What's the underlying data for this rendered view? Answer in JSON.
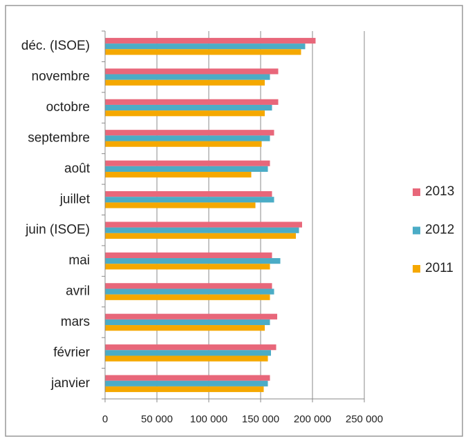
{
  "chart_data": {
    "type": "bar",
    "orientation": "horizontal",
    "categories": [
      "janvier",
      "février",
      "mars",
      "avril",
      "mai",
      "juin (ISOE)",
      "juillet",
      "août",
      "septembre",
      "octobre",
      "novembre",
      "déc. (ISOE)"
    ],
    "series": [
      {
        "name": "2013",
        "color": "#e8677a",
        "values": [
          159000,
          165000,
          166000,
          161000,
          161000,
          190000,
          161000,
          159000,
          163000,
          167000,
          167000,
          203000
        ]
      },
      {
        "name": "2012",
        "color": "#4bacc6",
        "values": [
          157000,
          160000,
          159000,
          163000,
          169000,
          187000,
          163000,
          157000,
          159000,
          161000,
          159000,
          193000
        ]
      },
      {
        "name": "2011",
        "color": "#f5a800",
        "values": [
          153000,
          157000,
          154000,
          159000,
          159000,
          184000,
          145000,
          141000,
          151000,
          154000,
          154000,
          189000
        ]
      }
    ],
    "xlim": [
      0,
      250000
    ],
    "xticks": [
      0,
      {
        "value": 50000,
        "label": "50 000"
      },
      {
        "value": 100000,
        "label": "100 000"
      },
      {
        "value": 150000,
        "label": "150 000"
      },
      {
        "value": 200000,
        "label": "200 000"
      },
      {
        "value": 250000,
        "label": "250 000"
      }
    ],
    "grid": true,
    "legend": "right"
  }
}
